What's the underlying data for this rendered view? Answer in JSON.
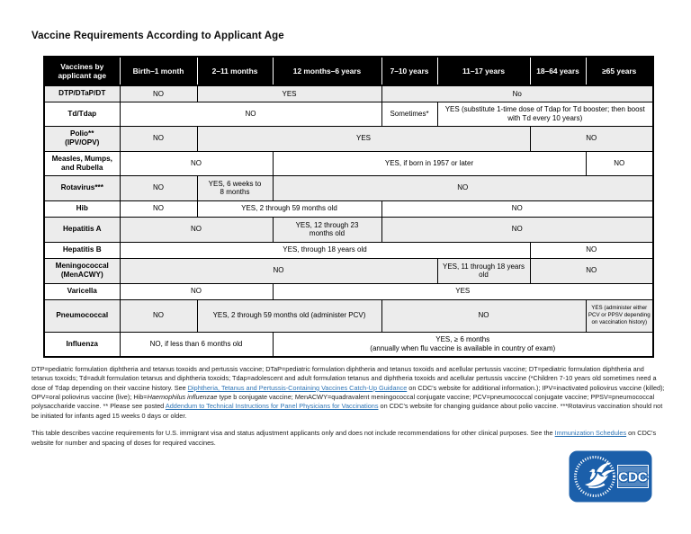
{
  "title": "Vaccine Requirements According to Applicant Age",
  "colors": {
    "header_bg": "#000000",
    "row_shade": "#ececec",
    "link_color": "#2e74b5",
    "logo_blue": "#1b5faa"
  },
  "table": {
    "columns": [
      "Vaccines by\napplicant age",
      "Birth–1 month",
      "2–11 months",
      "12 months–6 years",
      "7–10 years",
      "11–17 years",
      "18–64 years",
      "≥65 years"
    ],
    "rows": [
      {
        "label": "DTP/DTaP/DT",
        "shaded": true,
        "cells": [
          {
            "text": "NO",
            "span": 1
          },
          {
            "text": "YES",
            "span": 2
          },
          {
            "text": "No",
            "span": 4
          }
        ]
      },
      {
        "label": "Td/Tdap",
        "shaded": false,
        "cells": [
          {
            "text": "NO",
            "span": 3
          },
          {
            "text": "Sometimes*",
            "span": 1
          },
          {
            "text": "YES (substitute 1-time dose of Tdap for Td booster; then boost with Td every 10 years)",
            "span": 3
          }
        ]
      },
      {
        "label": "Polio**\n(IPV/OPV)",
        "shaded": true,
        "cells": [
          {
            "text": "NO",
            "span": 1
          },
          {
            "text": "YES",
            "span": 4
          },
          {
            "text": "NO",
            "span": 2
          }
        ]
      },
      {
        "label": "Measles, Mumps,\nand Rubella",
        "shaded": false,
        "cells": [
          {
            "text": "NO",
            "span": 2
          },
          {
            "text": "YES, if born in 1957 or later",
            "span": 4
          },
          {
            "text": "NO",
            "span": 1
          }
        ]
      },
      {
        "label": "Rotavirus***",
        "shaded": true,
        "cells": [
          {
            "text": "NO",
            "span": 1
          },
          {
            "text": "YES, 6 weeks to\n8 months",
            "span": 1
          },
          {
            "text": "NO",
            "span": 5
          }
        ]
      },
      {
        "label": "Hib",
        "shaded": false,
        "cells": [
          {
            "text": "NO",
            "span": 1
          },
          {
            "text": "YES, 2 through 59 months old",
            "span": 2
          },
          {
            "text": "NO",
            "span": 4
          }
        ]
      },
      {
        "label": "Hepatitis A",
        "shaded": true,
        "cells": [
          {
            "text": "NO",
            "span": 2
          },
          {
            "text": "YES, 12 through 23\nmonths old",
            "span": 1
          },
          {
            "text": "NO",
            "span": 4
          }
        ]
      },
      {
        "label": "Hepatitis B",
        "shaded": false,
        "cells": [
          {
            "text": "YES, through 18 years old",
            "span": 5
          },
          {
            "text": "NO",
            "span": 2
          }
        ]
      },
      {
        "label": "Meningococcal\n(MenACWY)",
        "shaded": true,
        "cells": [
          {
            "text": "NO",
            "span": 4
          },
          {
            "text": "YES, 11 through 18 years\nold",
            "span": 1
          },
          {
            "text": "NO",
            "span": 2
          }
        ]
      },
      {
        "label": "Varicella",
        "shaded": false,
        "cells": [
          {
            "text": "NO",
            "span": 2
          },
          {
            "text": "YES",
            "span": 5
          }
        ]
      },
      {
        "label": "Pneumococcal",
        "shaded": true,
        "cells": [
          {
            "text": "NO",
            "span": 1
          },
          {
            "text": "YES, 2 through 59 months old (administer PCV)",
            "span": 2
          },
          {
            "text": "NO",
            "span": 3
          },
          {
            "text": "YES (administer either PCV or PPSV depending on vaccination history)",
            "span": 1,
            "small": true
          }
        ]
      },
      {
        "label": "Influenza",
        "shaded": false,
        "cells": [
          {
            "text": "NO, if less than 6 months old",
            "span": 2
          },
          {
            "text": "YES, ≥ 6 months\n(annually when flu vaccine is available in country of exam)",
            "span": 5
          }
        ]
      }
    ]
  },
  "footnotes": {
    "p1": {
      "t1": "DTP=pediatric formulation diphtheria and tetanus toxoids and pertussis vaccine; DTaP=pediatric formulation diphtheria and tetanus toxoids and acellular pertussis vaccine; DT=pediatric formulation diphtheria and tetanus toxoids; Td=adult formulation tetanus and diphtheria toxoids; Tdap=adolescent and adult formulation tetanus and diphtheria toxoids and acellular pertussis vaccine (*Children 7-10 years old sometimes need a dose of Tdap depending on their vaccine history.  See ",
      "link1": "Diphtheria, Tetanus and Pertussis-Containing Vaccines Catch-Up Guidance",
      "t2": " on CDC's website for additional information.); IPV=inactivated poliovirus vaccine (killed); OPV=oral poliovirus vaccine (live); Hib=",
      "italic": "Haemophilus influenzae",
      "t3": " type b conjugate vaccine; MenACWY=quadravalent meningococcal conjugate vaccine; PCV=pneumococcal conjugate vaccine; PPSV=pneumococcal polysaccharide vaccine. ** Please see posted ",
      "link2": "Addendum to Technical Instructions for Panel Physicians for Vaccinations",
      "t4": " on CDC's website for changing guidance about polio vaccine. ***Rotavirus vaccination should not be initiated for infants aged 15 weeks 0 days or older."
    },
    "p2": {
      "t1": "This table describes vaccine requirements for U.S. immigrant visa and status adjustment applicants only and does not include recommendations for other clinical purposes.  See the ",
      "link": "Immunization Schedules",
      "t2": " on CDC's website for number and spacing of doses for required vaccines."
    }
  },
  "logo": {
    "cdc_label": "CDC"
  }
}
